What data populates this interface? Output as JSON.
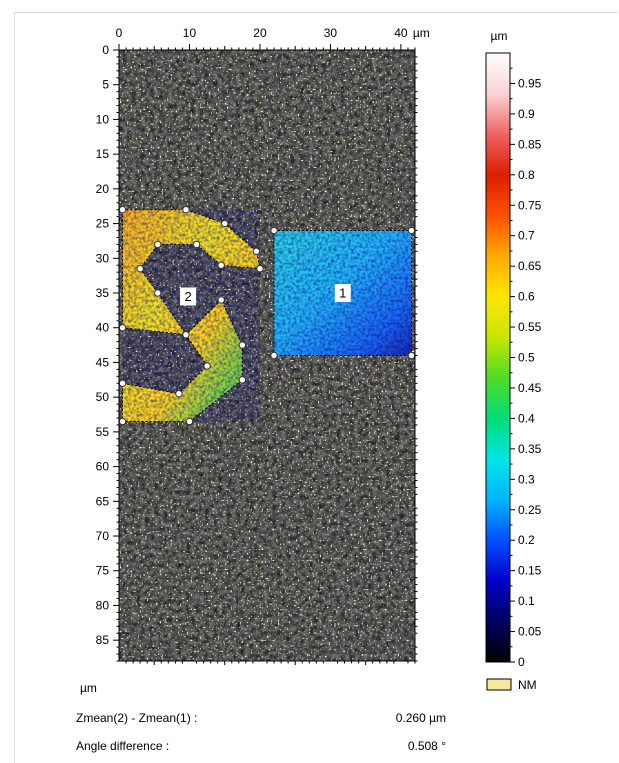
{
  "chart_data": {
    "type": "heatmap",
    "x_axis": {
      "unit": "µm",
      "ticks": [
        0,
        10,
        20,
        30,
        40
      ],
      "range": [
        0,
        42
      ]
    },
    "y_axis": {
      "unit": "µm",
      "ticks": [
        0,
        5,
        10,
        15,
        20,
        25,
        30,
        35,
        40,
        45,
        50,
        55,
        60,
        65,
        70,
        75,
        80,
        85
      ],
      "range": [
        0,
        88
      ]
    },
    "colorbar": {
      "unit": "µm",
      "range": [
        0,
        1.0
      ],
      "ticks": [
        "0",
        "0.05",
        "0.1",
        "0.15",
        "0.2",
        "0.25",
        "0.3",
        "0.35",
        "0.4",
        "0.45",
        "0.5",
        "0.55",
        "0.6",
        "0.65",
        "0.7",
        "0.75",
        "0.8",
        "0.85",
        "0.9",
        "0.95"
      ],
      "colors": [
        "#000000",
        "#000060",
        "#0000c8",
        "#0050ff",
        "#00b4ff",
        "#00e6e6",
        "#00dc78",
        "#50dc28",
        "#c8e600",
        "#ffe600",
        "#ffaa00",
        "#ff5000",
        "#dc1e00",
        "#f06464",
        "#fad2d2",
        "#ffffff"
      ]
    },
    "legend": {
      "swatch_color": "#f5e89a",
      "label": "NM"
    },
    "regions": [
      {
        "id": "1",
        "shape": "rectangle",
        "points": [
          [
            22,
            26
          ],
          [
            41.5,
            26
          ],
          [
            41.5,
            44
          ],
          [
            22,
            44
          ]
        ],
        "mean_height_hint": 0.3
      },
      {
        "id": "2",
        "shape": "polygon",
        "points": [
          [
            0.5,
            23
          ],
          [
            9.5,
            23
          ],
          [
            15,
            25
          ],
          [
            19.5,
            29
          ],
          [
            20,
            31.5
          ],
          [
            14.5,
            31
          ],
          [
            11,
            28
          ],
          [
            5.5,
            28
          ],
          [
            3,
            31.5
          ],
          [
            5.5,
            35
          ],
          [
            9.5,
            41
          ],
          [
            14.5,
            36
          ],
          [
            17.5,
            42.5
          ],
          [
            17.5,
            47.5
          ],
          [
            10,
            53.5
          ],
          [
            0.5,
            53.5
          ],
          [
            0.5,
            48
          ],
          [
            8.5,
            49.5
          ],
          [
            12.5,
            45.5
          ],
          [
            9.5,
            41
          ],
          [
            0.5,
            40
          ]
        ],
        "label_pos": [
          9.8,
          35.5
        ],
        "mean_height_hint": 0.6
      }
    ],
    "background": "grayscale surface texture",
    "title": "",
    "xlabel": "",
    "ylabel": ""
  },
  "labels": {
    "x_unit": "µm",
    "y_unit": "µm",
    "cb_unit": "µm"
  },
  "results": [
    {
      "label": "Zmean(2) - Zmean(1) :",
      "value": "0.260 µm"
    },
    {
      "label": "Angle difference :",
      "value": "0.508 °"
    }
  ]
}
